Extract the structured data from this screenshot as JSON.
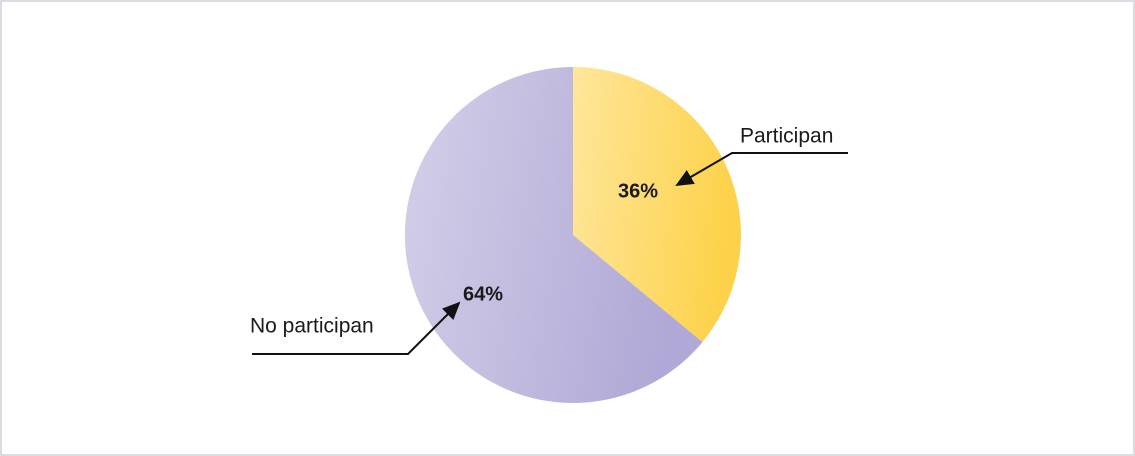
{
  "chart_data": {
    "type": "pie",
    "categories": [
      "Participan",
      "No participan"
    ],
    "values": [
      36,
      64
    ],
    "value_labels": [
      "36%",
      "64%"
    ],
    "colors": [
      "#fdd24a",
      "#b0a8d6"
    ]
  }
}
